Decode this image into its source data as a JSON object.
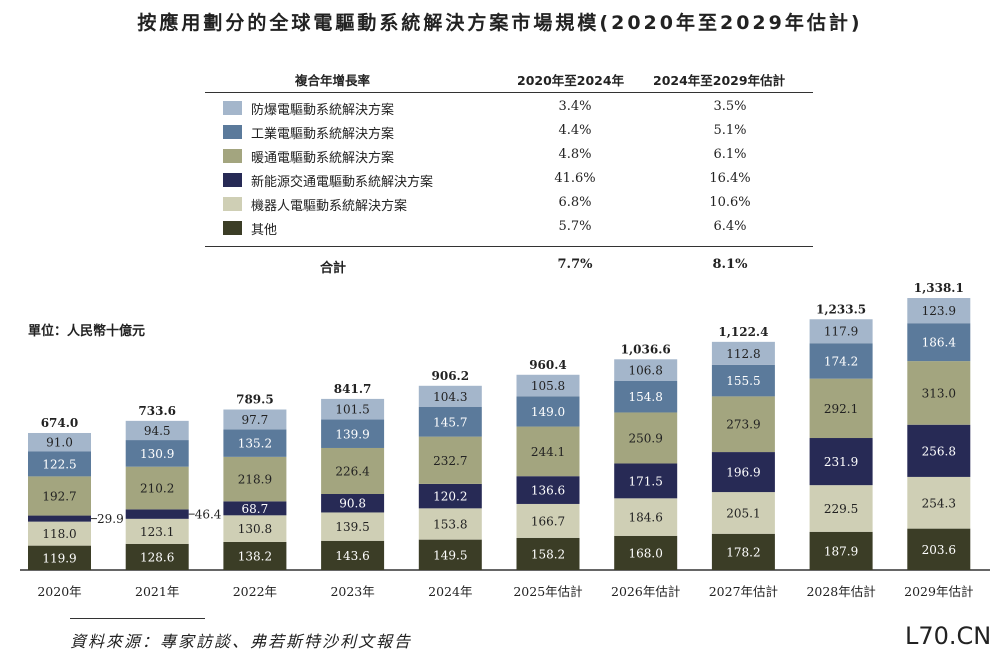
{
  "title": "按應用劃分的全球電驅動系統解決方案市場規模(2020年至2029年估計)",
  "unit_label": "單位：人民幣十億元",
  "cagr_table": {
    "header": {
      "label": "複合年增長率",
      "col1": "2020年至2024年",
      "col2": "2024年至2029年估計"
    },
    "rows": [
      {
        "label": "防爆電驅動系統解決方案",
        "col1": "3.4%",
        "col2": "3.5%"
      },
      {
        "label": "工業電驅動系統解決方案",
        "col1": "4.4%",
        "col2": "5.1%"
      },
      {
        "label": "暖通電驅動系統解決方案",
        "col1": "4.8%",
        "col2": "6.1%"
      },
      {
        "label": "新能源交通電驅動系統解決方案",
        "col1": "41.6%",
        "col2": "16.4%"
      },
      {
        "label": "機器人電驅動系統解決方案",
        "col1": "6.8%",
        "col2": "10.6%"
      },
      {
        "label": "其他",
        "col1": "5.7%",
        "col2": "6.4%"
      }
    ],
    "total": {
      "label": "合計",
      "col1": "7.7%",
      "col2": "8.1%"
    }
  },
  "source": "資料來源：專家訪談、弗若斯特沙利文報告",
  "watermark": "L70.CN",
  "chart_data": {
    "type": "bar",
    "stacked": true,
    "title": "按應用劃分的全球電驅動系統解決方案市場規模(2020年至2029年估計)",
    "ylabel": "單位：人民幣十億元",
    "categories": [
      "2020年",
      "2021年",
      "2022年",
      "2023年",
      "2024年",
      "2025年估計",
      "2026年估計",
      "2027年估計",
      "2028年估計",
      "2029年估計"
    ],
    "totals": [
      "674.0",
      "733.6",
      "789.5",
      "841.7",
      "906.2",
      "960.4",
      "1,036.6",
      "1,122.4",
      "1,233.5",
      "1,338.1"
    ],
    "series": [
      {
        "name": "其他",
        "color": "#3b3d26",
        "text_color": "#ffffff",
        "values": [
          119.9,
          128.6,
          138.2,
          143.6,
          149.5,
          158.2,
          168.0,
          178.2,
          187.9,
          203.6
        ]
      },
      {
        "name": "機器人電驅動系統解決方案",
        "color": "#cfcfb5",
        "text_color": "#222222",
        "values": [
          118.0,
          123.1,
          130.8,
          139.5,
          153.8,
          166.7,
          184.6,
          205.1,
          229.5,
          254.3
        ]
      },
      {
        "name": "新能源交通電驅動系統解決方案",
        "color": "#272a55",
        "text_color": "#ffffff",
        "values": [
          29.9,
          46.4,
          68.7,
          90.8,
          120.2,
          136.6,
          171.5,
          196.9,
          231.9,
          256.8
        ]
      },
      {
        "name": "暖通電驅動系統解決方案",
        "color": "#a3a57f",
        "text_color": "#222222",
        "values": [
          192.7,
          210.2,
          218.9,
          226.4,
          232.7,
          244.1,
          250.9,
          273.9,
          292.1,
          313.0
        ]
      },
      {
        "name": "工業電驅動系統解決方案",
        "color": "#5b7a9b",
        "text_color": "#ffffff",
        "values": [
          122.5,
          130.9,
          135.2,
          139.9,
          145.7,
          149.0,
          154.8,
          155.5,
          174.2,
          186.4
        ]
      },
      {
        "name": "防爆電驅動系統解決方案",
        "color": "#a4b6cb",
        "text_color": "#222222",
        "values": [
          91.0,
          94.5,
          97.7,
          101.5,
          104.3,
          105.8,
          106.8,
          112.8,
          117.9,
          123.9
        ]
      }
    ],
    "ylim": [
      0,
      1338.1
    ],
    "grid": false,
    "legend": "top-center (table)"
  }
}
